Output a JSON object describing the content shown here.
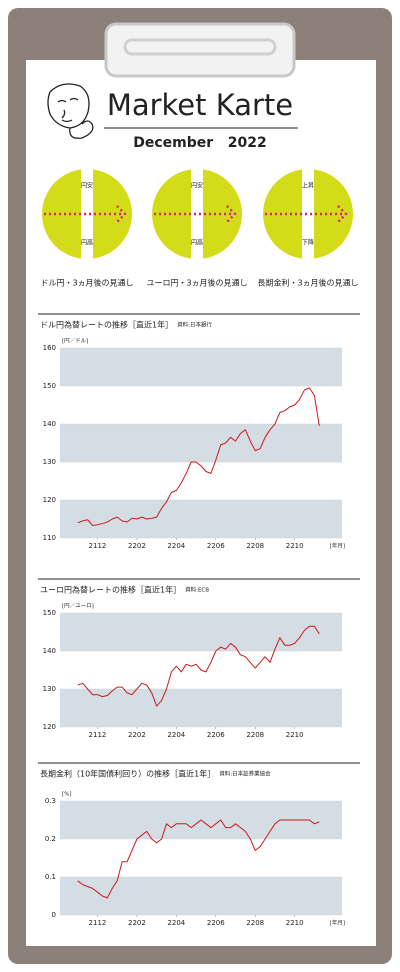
{
  "header": {
    "title": "Market Karte",
    "subtitle": "December   2022"
  },
  "outlooks": [
    {
      "top": "円安",
      "bottom": "円高",
      "caption": "ドル円・3ヵ月後の見通し"
    },
    {
      "top": "円安",
      "bottom": "円高",
      "caption": "ユーロ円・3ヵ月後の見通し"
    },
    {
      "top": "上昇",
      "bottom": "下降",
      "caption": "長期金利・3ヵ月後の見通し"
    }
  ],
  "chart_data": [
    {
      "type": "line",
      "title": "ドル円為替レートの推移［直近1年］",
      "source": "資料:日本銀行",
      "unit": "[円／ドル]",
      "xlabel": "[年月]",
      "color": "#cc1a1a",
      "band_color": "#d3dde3",
      "x": [
        -1,
        -0.75,
        -0.5,
        -0.25,
        0,
        0.25,
        0.5,
        0.75,
        1,
        1.25,
        1.5,
        1.75,
        2,
        2.25,
        2.5,
        2.75,
        3,
        3.25,
        3.5,
        3.75,
        4,
        4.25,
        4.5,
        4.75,
        5,
        5.25,
        5.5,
        5.75,
        6,
        6.25,
        6.5,
        6.75,
        7,
        7.25,
        7.5,
        7.75,
        8,
        8.25,
        8.5,
        8.75,
        9,
        9.25,
        9.5,
        9.75,
        10,
        10.25,
        10.5,
        10.75,
        11,
        11.25
      ],
      "values": [
        114,
        114.5,
        114.8,
        113.3,
        113.5,
        113.8,
        114.2,
        115,
        115.5,
        114.5,
        114.2,
        115.2,
        115,
        115.5,
        115,
        115.2,
        115.5,
        117.8,
        119.5,
        122,
        122.5,
        124.5,
        127,
        130,
        130,
        129,
        127.5,
        127,
        130.5,
        134.5,
        135,
        136.5,
        135.5,
        137.5,
        138.5,
        135.5,
        133,
        133.5,
        136.5,
        138.5,
        140,
        143,
        143.5,
        144.5,
        145,
        146.5,
        149,
        149.5,
        147.5,
        139.5
      ],
      "xlim": [
        -1.9,
        12.4
      ],
      "xticks": [
        {
          "value": 0,
          "label": "2112"
        },
        {
          "value": 2,
          "label": "2202"
        },
        {
          "value": 4,
          "label": "2204"
        },
        {
          "value": 6,
          "label": "2206"
        },
        {
          "value": 8,
          "label": "2208"
        },
        {
          "value": 10,
          "label": "2210"
        }
      ],
      "ylim": [
        110,
        160
      ],
      "yticks": [
        110,
        120,
        130,
        140,
        150,
        160
      ]
    },
    {
      "type": "line",
      "title": "ユーロ円為替レートの推移［直近1年］",
      "source": "資料:ECB",
      "unit": "[円／ユーロ]",
      "color": "#cc1a1a",
      "band_color": "#d3dde3",
      "x": [
        -1,
        -0.75,
        -0.5,
        -0.25,
        0,
        0.25,
        0.5,
        0.75,
        1,
        1.25,
        1.5,
        1.75,
        2,
        2.25,
        2.5,
        2.75,
        3,
        3.25,
        3.5,
        3.75,
        4,
        4.25,
        4.5,
        4.75,
        5,
        5.25,
        5.5,
        5.75,
        6,
        6.25,
        6.5,
        6.75,
        7,
        7.25,
        7.5,
        7.75,
        8,
        8.25,
        8.5,
        8.75,
        9,
        9.25,
        9.5,
        9.75,
        10,
        10.25,
        10.5,
        10.75,
        11,
        11.25
      ],
      "values": [
        131,
        131.5,
        130,
        128.5,
        128.5,
        128,
        128.3,
        129.5,
        130.5,
        130.5,
        129,
        128.5,
        130,
        131.5,
        131,
        129,
        125.5,
        127,
        130,
        134.5,
        136,
        134.5,
        136.5,
        136,
        136.5,
        135,
        134.5,
        137,
        140,
        141,
        140.5,
        142,
        141,
        139,
        138.5,
        137,
        135.5,
        137,
        138.5,
        137,
        140.5,
        143.5,
        141.5,
        141.5,
        142,
        143.5,
        145.5,
        146.5,
        146.5,
        144.5
      ],
      "xlim": [
        -1.9,
        12.4
      ],
      "xticks": [
        {
          "value": 0,
          "label": "2112"
        },
        {
          "value": 2,
          "label": "2202"
        },
        {
          "value": 4,
          "label": "2204"
        },
        {
          "value": 6,
          "label": "2206"
        },
        {
          "value": 8,
          "label": "2208"
        },
        {
          "value": 10,
          "label": "2210"
        }
      ],
      "ylim": [
        120,
        150
      ],
      "yticks": [
        120,
        130,
        140,
        150
      ]
    },
    {
      "type": "line",
      "title": "長期金利（10年国債利回り）の推移［直近1年］",
      "source": "資料:日本証券業協会",
      "unit": "[%]",
      "xlabel": "[年月]",
      "color": "#cc1a1a",
      "band_color": "#d3dde3",
      "x": [
        -1,
        -0.75,
        -0.5,
        -0.25,
        0,
        0.25,
        0.5,
        0.75,
        1,
        1.25,
        1.5,
        1.75,
        2,
        2.25,
        2.5,
        2.75,
        3,
        3.25,
        3.5,
        3.75,
        4,
        4.25,
        4.5,
        4.75,
        5,
        5.25,
        5.5,
        5.75,
        6,
        6.25,
        6.5,
        6.75,
        7,
        7.25,
        7.5,
        7.75,
        8,
        8.25,
        8.5,
        8.75,
        9,
        9.25,
        9.5,
        9.75,
        10,
        10.25,
        10.5,
        10.75,
        11,
        11.25
      ],
      "values": [
        0.09,
        0.08,
        0.075,
        0.07,
        0.06,
        0.05,
        0.045,
        0.07,
        0.09,
        0.14,
        0.14,
        0.17,
        0.2,
        0.21,
        0.22,
        0.2,
        0.19,
        0.2,
        0.24,
        0.23,
        0.24,
        0.24,
        0.24,
        0.23,
        0.24,
        0.25,
        0.24,
        0.23,
        0.24,
        0.25,
        0.23,
        0.23,
        0.24,
        0.23,
        0.22,
        0.2,
        0.17,
        0.18,
        0.2,
        0.22,
        0.24,
        0.25,
        0.25,
        0.25,
        0.25,
        0.25,
        0.25,
        0.25,
        0.24,
        0.245
      ],
      "xlim": [
        -1.9,
        12.4
      ],
      "xticks": [
        {
          "value": 0,
          "label": "2112"
        },
        {
          "value": 2,
          "label": "2202"
        },
        {
          "value": 4,
          "label": "2204"
        },
        {
          "value": 6,
          "label": "2206"
        },
        {
          "value": 8,
          "label": "2208"
        },
        {
          "value": 10,
          "label": "2210"
        }
      ],
      "ylim": [
        0,
        0.3
      ],
      "yticks": [
        0,
        0.1,
        0.2,
        0.3
      ]
    }
  ]
}
